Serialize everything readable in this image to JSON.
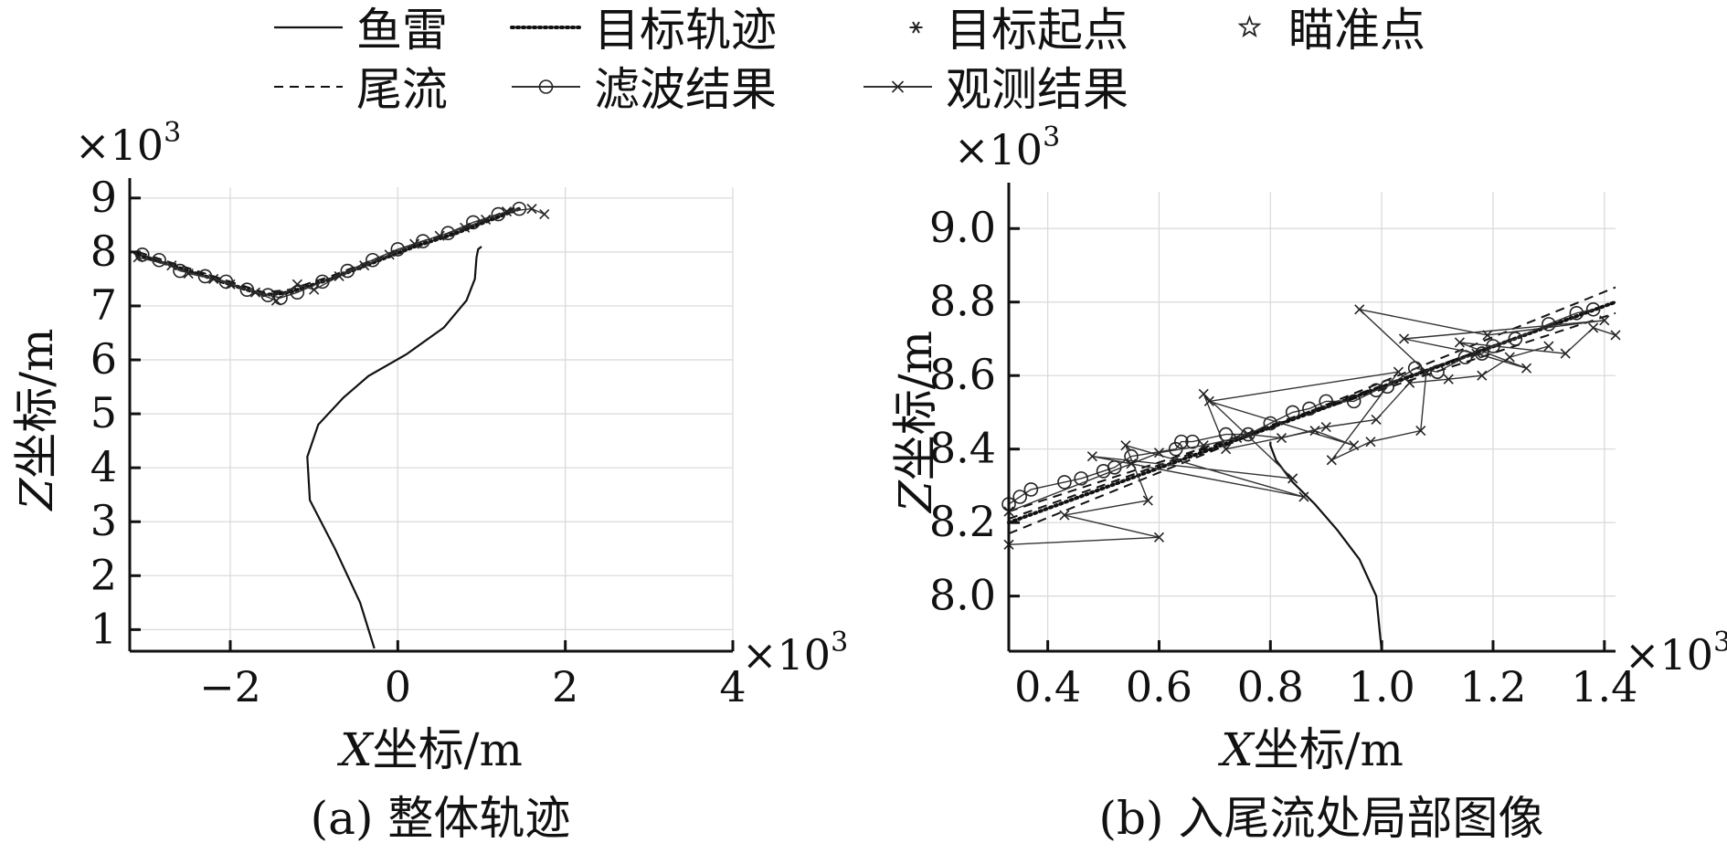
{
  "legend": {
    "entries": [
      {
        "name": "鱼雷",
        "style": "solid"
      },
      {
        "name": "目标轨迹",
        "style": "dotted"
      },
      {
        "name": "目标起点",
        "style": "asterisk"
      },
      {
        "name": "瞄准点",
        "style": "star"
      },
      {
        "name": "尾流",
        "style": "dashed"
      },
      {
        "name": "滤波结果",
        "style": "circle-line"
      },
      {
        "name": "观测结果",
        "style": "cross-line"
      }
    ]
  },
  "chart_data": [
    {
      "type": "line",
      "caption": "(a) 整体轨迹",
      "xlabel_var": "X",
      "xlabel_unit": "坐标/m",
      "ylabel_var": "Z",
      "ylabel_unit": "坐标/m",
      "x_scale_label": "×10",
      "y_scale_label": "×10",
      "scale_exponent": "3",
      "xlim": [
        -3.2,
        4.0
      ],
      "ylim": [
        0.6,
        9.2
      ],
      "xticks": [
        -2,
        0,
        2,
        4
      ],
      "xtick_labels": [
        "−2",
        "0",
        "2",
        "4"
      ],
      "yticks": [
        1,
        2,
        3,
        4,
        5,
        6,
        7,
        8,
        9
      ],
      "ytick_labels": [
        "1",
        "2",
        "3",
        "4",
        "5",
        "6",
        "7",
        "8",
        "9"
      ],
      "series": [
        {
          "name": "鱼雷",
          "style": "solid",
          "x": [
            -0.28,
            -0.45,
            -0.75,
            -1.05,
            -1.08,
            -0.95,
            -0.65,
            -0.35,
            0.1,
            0.55,
            0.82,
            0.92,
            0.94,
            0.96,
            1.0
          ],
          "y": [
            0.65,
            1.5,
            2.5,
            3.4,
            4.2,
            4.8,
            5.3,
            5.7,
            6.1,
            6.6,
            7.1,
            7.5,
            7.9,
            8.05,
            8.1
          ]
        },
        {
          "name": "目标轨迹",
          "style": "dotted",
          "x": [
            -3.1,
            -2.6,
            -2.1,
            -1.6,
            -1.3,
            -0.8,
            -0.3,
            0.2,
            0.7,
            1.2,
            1.45
          ],
          "y": [
            7.95,
            7.7,
            7.45,
            7.2,
            7.25,
            7.5,
            7.8,
            8.1,
            8.35,
            8.65,
            8.8
          ]
        },
        {
          "name": "尾流",
          "style": "dashed",
          "x": [
            -3.1,
            -2.6,
            -2.1,
            -1.6,
            -1.3,
            -0.8,
            -0.3,
            0.2,
            0.7,
            1.2,
            1.45
          ],
          "y": [
            8.0,
            7.75,
            7.5,
            7.25,
            7.3,
            7.55,
            7.85,
            8.15,
            8.4,
            8.7,
            8.85
          ]
        },
        {
          "name": "滤波结果",
          "style": "circle-line",
          "x": [
            -3.05,
            -2.85,
            -2.6,
            -2.3,
            -2.05,
            -1.8,
            -1.55,
            -1.4,
            -1.2,
            -0.9,
            -0.6,
            -0.3,
            0.0,
            0.3,
            0.6,
            0.9,
            1.2,
            1.45
          ],
          "y": [
            7.95,
            7.85,
            7.65,
            7.55,
            7.45,
            7.3,
            7.2,
            7.15,
            7.25,
            7.45,
            7.65,
            7.85,
            8.05,
            8.2,
            8.35,
            8.55,
            8.7,
            8.8
          ]
        },
        {
          "name": "观测结果",
          "style": "cross-line",
          "x": [
            -3.1,
            -2.7,
            -2.5,
            -2.2,
            -2.0,
            -1.7,
            -1.45,
            -1.2,
            -1.0,
            -0.7,
            -0.4,
            -0.1,
            0.2,
            0.5,
            0.8,
            1.05,
            1.3,
            1.6,
            1.75
          ],
          "y": [
            7.9,
            7.75,
            7.6,
            7.5,
            7.4,
            7.25,
            7.1,
            7.4,
            7.3,
            7.55,
            7.75,
            7.95,
            8.15,
            8.3,
            8.45,
            8.6,
            8.75,
            8.8,
            8.7
          ]
        }
      ]
    },
    {
      "type": "line",
      "caption": "(b) 入尾流处局部图像",
      "xlabel_var": "X",
      "xlabel_unit": "坐标/m",
      "ylabel_var": "Z",
      "ylabel_unit": "坐标/m",
      "x_scale_label": "×10",
      "y_scale_label": "×10",
      "scale_exponent": "3",
      "xlim": [
        0.33,
        1.42
      ],
      "ylim": [
        7.85,
        9.1
      ],
      "xticks": [
        0.4,
        0.6,
        0.8,
        1.0,
        1.2,
        1.4
      ],
      "xtick_labels": [
        "0.4",
        "0.6",
        "0.8",
        "1.0",
        "1.2",
        "1.4"
      ],
      "yticks": [
        8.0,
        8.2,
        8.4,
        8.6,
        8.8,
        9.0
      ],
      "ytick_labels": [
        "8.0",
        "8.2",
        "8.4",
        "8.6",
        "8.8",
        "9.0"
      ],
      "series": [
        {
          "name": "鱼雷",
          "style": "solid",
          "x": [
            1.0,
            0.99,
            0.96,
            0.92,
            0.88,
            0.84,
            0.81,
            0.8,
            0.8
          ],
          "y": [
            7.85,
            8.0,
            8.1,
            8.18,
            8.25,
            8.31,
            8.37,
            8.41,
            8.42
          ]
        },
        {
          "name": "目标轨迹",
          "style": "dotted",
          "x": [
            0.33,
            1.42
          ],
          "y": [
            8.2,
            8.8
          ]
        },
        {
          "name": "尾流",
          "style": "dashed",
          "x": [
            0.33,
            1.42
          ],
          "y": [
            8.17,
            8.84
          ]
        },
        {
          "name": "尾流",
          "style": "dashed",
          "x": [
            0.33,
            1.42
          ],
          "y": [
            8.21,
            8.8
          ]
        },
        {
          "name": "尾流",
          "style": "dashed",
          "x": [
            0.33,
            1.42
          ],
          "y": [
            8.23,
            8.77
          ]
        },
        {
          "name": "滤波结果",
          "style": "circle-line",
          "x": [
            0.33,
            0.35,
            0.37,
            0.43,
            0.46,
            0.5,
            0.52,
            0.55,
            0.63,
            0.64,
            0.66,
            0.72,
            0.76,
            0.8,
            0.84,
            0.87,
            0.9,
            0.95,
            0.99,
            1.01,
            1.06,
            1.1,
            1.15,
            1.18,
            1.2,
            1.24,
            1.3,
            1.35,
            1.38
          ],
          "y": [
            8.25,
            8.27,
            8.29,
            8.31,
            8.32,
            8.34,
            8.35,
            8.38,
            8.4,
            8.42,
            8.42,
            8.44,
            8.44,
            8.47,
            8.5,
            8.51,
            8.53,
            8.53,
            8.56,
            8.57,
            8.62,
            8.61,
            8.65,
            8.66,
            8.68,
            8.7,
            8.74,
            8.77,
            8.78
          ]
        },
        {
          "name": "观测结果",
          "style": "cross-line",
          "x": [
            0.33,
            0.6,
            0.43,
            0.58,
            0.54,
            0.86,
            0.48,
            0.84,
            0.68,
            0.72,
            0.88,
            0.95,
            0.69,
            1.03,
            0.91,
            0.98,
            1.07,
            1.08,
            0.96,
            1.19,
            1.4,
            1.04,
            1.17,
            1.26,
            1.14,
            1.33,
            1.38,
            1.42
          ],
          "y": [
            8.14,
            8.16,
            8.22,
            8.26,
            8.41,
            8.27,
            8.38,
            8.32,
            8.55,
            8.4,
            8.45,
            8.41,
            8.53,
            8.61,
            8.37,
            8.42,
            8.45,
            8.61,
            8.78,
            8.71,
            8.75,
            8.7,
            8.66,
            8.62,
            8.69,
            8.66,
            8.73,
            8.71
          ]
        },
        {
          "name": "观测结果",
          "style": "cross-line",
          "x": [
            0.33,
            0.55,
            0.6,
            0.68,
            0.74,
            0.76,
            0.82,
            0.9,
            0.99,
            1.05,
            1.12,
            1.18,
            1.23,
            1.3
          ],
          "y": [
            8.23,
            8.36,
            8.39,
            8.41,
            8.43,
            8.44,
            8.43,
            8.46,
            8.48,
            8.58,
            8.59,
            8.6,
            8.65,
            8.68
          ]
        }
      ]
    }
  ]
}
